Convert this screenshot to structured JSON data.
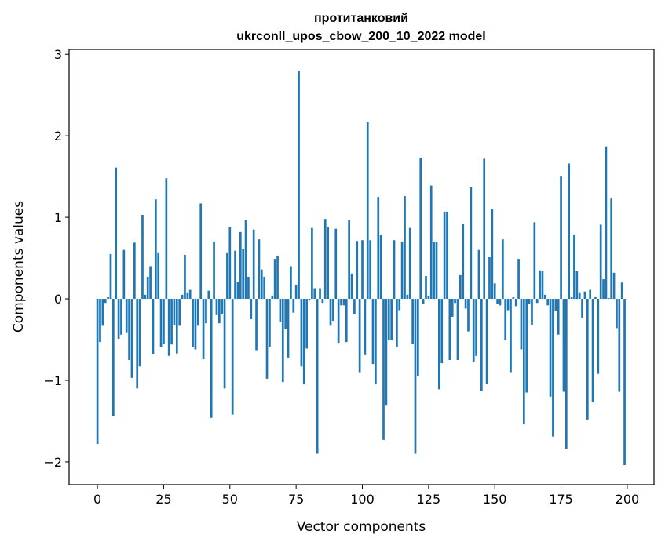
{
  "chart_data": {
    "type": "bar",
    "title": "протитанковий",
    "subtitle": "ukrconll_upos_cbow_200_10_2022 model",
    "xlabel": "Vector components",
    "ylabel": "Components values",
    "xlim": [
      -10.7,
      210.1
    ],
    "ylim": [
      -2.28,
      3.06
    ],
    "xticks": [
      0,
      25,
      50,
      75,
      100,
      125,
      150,
      175,
      200
    ],
    "yticks": [
      -2,
      -1,
      0,
      1,
      2,
      3
    ],
    "ytick_labels": [
      "−2",
      "−1",
      "0",
      "1",
      "2",
      "3"
    ],
    "grid": false,
    "color": "#1f77b4",
    "values": [
      -1.78,
      -0.53,
      -0.33,
      -0.05,
      0.02,
      0.55,
      -1.44,
      1.61,
      -0.49,
      -0.44,
      0.6,
      -0.41,
      -0.75,
      -0.97,
      0.69,
      -1.1,
      -0.83,
      1.03,
      0.05,
      0.27,
      0.4,
      -0.68,
      1.22,
      0.57,
      -0.59,
      -0.55,
      1.48,
      -0.7,
      -0.56,
      -0.32,
      -0.67,
      -0.33,
      0.05,
      0.54,
      0.08,
      0.11,
      -0.59,
      -0.62,
      -0.33,
      1.17,
      -0.74,
      -0.3,
      0.1,
      -1.46,
      0.7,
      -0.2,
      -0.3,
      -0.19,
      -1.1,
      0.57,
      0.88,
      -1.42,
      0.59,
      0.21,
      0.82,
      0.61,
      0.97,
      0.27,
      -0.25,
      0.85,
      -0.63,
      0.73,
      0.36,
      0.27,
      -0.98,
      -0.59,
      0.04,
      0.49,
      0.53,
      -0.28,
      -1.02,
      -0.37,
      -0.72,
      0.4,
      -0.17,
      0.17,
      2.8,
      -0.83,
      -1.05,
      -0.61,
      -0.02,
      0.87,
      0.13,
      -1.9,
      0.13,
      -0.05,
      0.98,
      0.88,
      -0.33,
      -0.27,
      0.86,
      -0.54,
      -0.08,
      -0.08,
      -0.53,
      0.97,
      0.31,
      -0.19,
      0.71,
      -0.9,
      0.72,
      -0.69,
      2.17,
      0.72,
      -0.8,
      -1.05,
      1.25,
      0.79,
      -1.73,
      -1.31,
      -0.51,
      -0.51,
      0.72,
      -0.59,
      -0.14,
      0.7,
      1.26,
      0.05,
      0.87,
      -0.55,
      -1.9,
      -0.95,
      1.73,
      -0.06,
      0.28,
      0.04,
      1.39,
      0.7,
      0.7,
      -1.11,
      -0.79,
      1.07,
      1.07,
      -0.75,
      -0.22,
      -0.05,
      -0.75,
      0.29,
      0.92,
      -0.12,
      -0.4,
      1.37,
      -0.77,
      -0.7,
      0.6,
      -1.13,
      1.72,
      -1.04,
      0.51,
      1.1,
      0.19,
      -0.06,
      -0.08,
      0.73,
      -0.51,
      -0.14,
      -0.9,
      0.02,
      -0.09,
      0.49,
      -0.62,
      -1.54,
      -1.15,
      -0.06,
      -0.32,
      0.94,
      -0.05,
      0.35,
      0.34,
      0.05,
      -0.08,
      -1.2,
      -1.69,
      -0.15,
      -0.44,
      1.5,
      -1.14,
      -1.84,
      1.66,
      0.02,
      0.79,
      0.34,
      0.08,
      -0.23,
      0.09,
      -1.48,
      0.11,
      -1.27,
      0.02,
      -0.92,
      0.91,
      0.24,
      1.87,
      0.01,
      1.23,
      0.32,
      -0.36,
      -1.14,
      0.2,
      -2.04
    ]
  }
}
